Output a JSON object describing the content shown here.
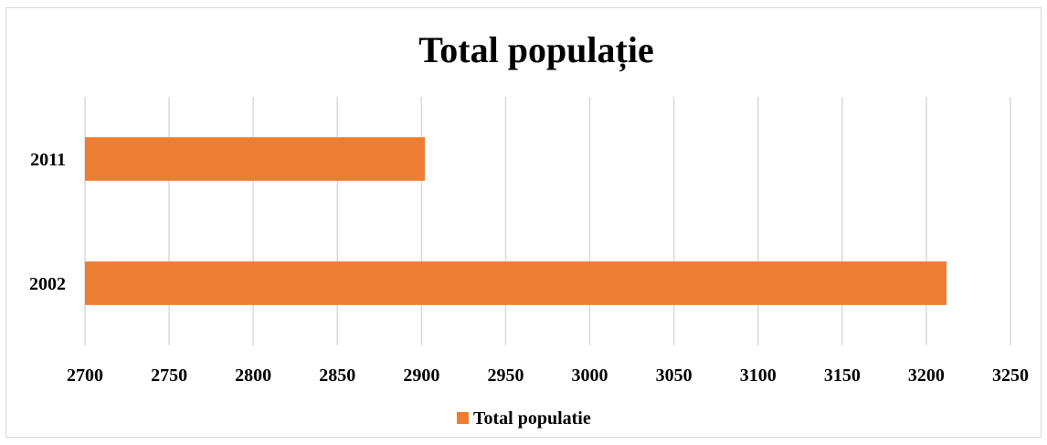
{
  "chart_data": {
    "type": "bar",
    "orientation": "horizontal",
    "title": "Total populație",
    "categories": [
      "2011",
      "2002"
    ],
    "series": [
      {
        "name": "Total populatie",
        "values": [
          2902,
          3212
        ],
        "color": "#ED7D31"
      }
    ],
    "xlim": [
      2700,
      3250
    ],
    "x_ticks": [
      "2700",
      "2750",
      "2800",
      "2850",
      "2900",
      "2950",
      "3000",
      "3050",
      "3100",
      "3150",
      "3200",
      "3250"
    ],
    "grid": true,
    "legend_position": "bottom"
  }
}
